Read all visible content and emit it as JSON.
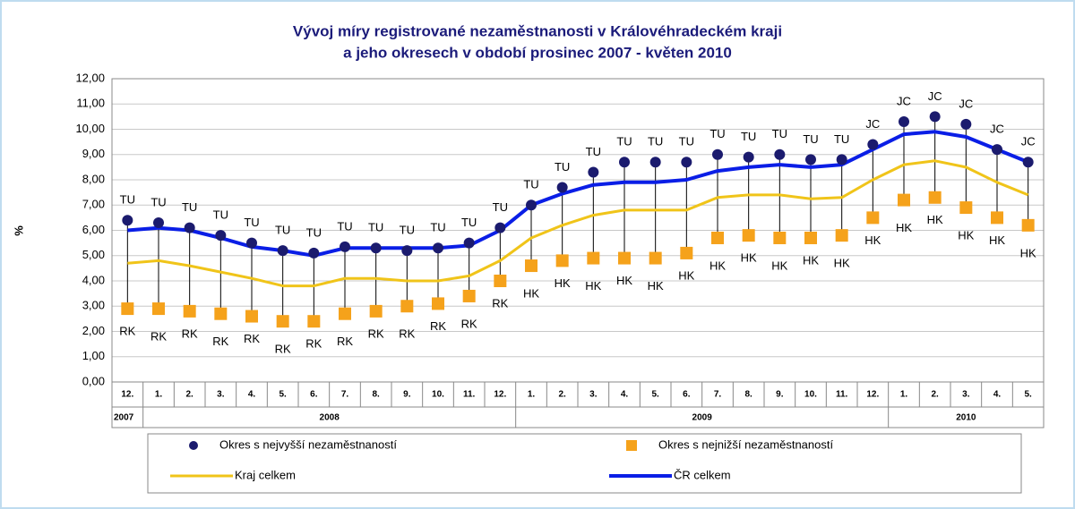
{
  "chart_data": {
    "type": "line",
    "title": [
      "Vývoj míry registrované nezaměstnanosti v Královéhradeckém kraji",
      "a jeho okresech v období prosinec 2007  -  květen 2010"
    ],
    "y_label": "%",
    "categories": [
      "12.",
      "1.",
      "2.",
      "3.",
      "4.",
      "5.",
      "6.",
      "7.",
      "8.",
      "9.",
      "10.",
      "11.",
      "12.",
      "1.",
      "2.",
      "3.",
      "4.",
      "5.",
      "6.",
      "7.",
      "8.",
      "9.",
      "10.",
      "11.",
      "12.",
      "1.",
      "2.",
      "3.",
      "4.",
      "5."
    ],
    "years": [
      "2007",
      "2008",
      "2009",
      "2010"
    ],
    "ylim": [
      0,
      12
    ],
    "yticks": [
      {
        "value": 0,
        "label": "0,00"
      },
      {
        "value": 1,
        "label": "1,00"
      },
      {
        "value": 2,
        "label": "2,00"
      },
      {
        "value": 3,
        "label": "3,00"
      },
      {
        "value": 4,
        "label": "4,00"
      },
      {
        "value": 5,
        "label": "5,00"
      },
      {
        "value": 6,
        "label": "6,00"
      },
      {
        "value": 7,
        "label": "7,00"
      },
      {
        "value": 8,
        "label": "8,00"
      },
      {
        "value": 9,
        "label": "9,00"
      },
      {
        "value": 10,
        "label": "10,00"
      },
      {
        "value": 11,
        "label": "11,00"
      },
      {
        "value": 12,
        "label": "12,00"
      }
    ],
    "grid": true,
    "series": [
      {
        "name": "Okres s nejvyšší nezaměstnaností",
        "marker": "circle",
        "color": "#1b1b6e",
        "values": [
          6.4,
          6.3,
          6.1,
          5.8,
          5.5,
          5.2,
          5.1,
          5.35,
          5.3,
          5.2,
          5.3,
          5.5,
          6.1,
          7.0,
          7.7,
          8.3,
          8.7,
          8.7,
          8.7,
          9.0,
          8.9,
          9.0,
          8.8,
          8.8,
          9.4,
          10.3,
          10.5,
          10.2,
          9.2,
          8.7
        ],
        "point_labels": [
          "TU",
          "TU",
          "TU",
          "TU",
          "TU",
          "TU",
          "TU",
          "TU",
          "TU",
          "TU",
          "TU",
          "TU",
          "TU",
          "TU",
          "TU",
          "TU",
          "TU",
          "TU",
          "TU",
          "TU",
          "TU",
          "TU",
          "TU",
          "TU",
          "JC",
          "JC",
          "JC",
          "JC",
          "JC",
          "JC"
        ]
      },
      {
        "name": "Okres s nejnižší nezaměstnaností",
        "marker": "square",
        "color": "#f5a21b",
        "values": [
          2.9,
          2.9,
          2.8,
          2.7,
          2.6,
          2.4,
          2.4,
          2.7,
          2.8,
          3.0,
          3.1,
          3.4,
          4.0,
          4.6,
          4.8,
          4.9,
          4.9,
          4.9,
          5.1,
          5.7,
          5.8,
          5.7,
          5.7,
          5.8,
          6.5,
          7.2,
          7.3,
          6.9,
          6.5,
          6.2
        ],
        "point_labels": [
          "RK",
          "RK",
          "RK",
          "RK",
          "RK",
          "RK",
          "RK",
          "RK",
          "RK",
          "RK",
          "RK",
          "RK",
          "RK",
          "HK",
          "HK",
          "HK",
          "HK",
          "HK",
          "HK",
          "HK",
          "HK",
          "HK",
          "HK",
          "HK",
          "HK",
          "HK",
          "HK",
          "HK",
          "HK",
          "HK"
        ]
      },
      {
        "name": "Kraj celkem",
        "marker": "line",
        "color": "#f0c419",
        "values": [
          4.7,
          4.8,
          4.6,
          4.35,
          4.1,
          3.8,
          3.8,
          4.1,
          4.1,
          4.0,
          4.0,
          4.2,
          4.8,
          5.7,
          6.2,
          6.6,
          6.8,
          6.8,
          6.8,
          7.3,
          7.4,
          7.4,
          7.25,
          7.3,
          8.0,
          8.6,
          8.75,
          8.5,
          7.9,
          7.4
        ]
      },
      {
        "name": "ČR celkem",
        "marker": "line",
        "color": "#0a1ee6",
        "values": [
          6.0,
          6.1,
          6.0,
          5.7,
          5.35,
          5.2,
          5.0,
          5.3,
          5.3,
          5.3,
          5.3,
          5.4,
          6.0,
          7.0,
          7.45,
          7.8,
          7.9,
          7.9,
          8.0,
          8.35,
          8.5,
          8.6,
          8.5,
          8.6,
          9.2,
          9.8,
          9.9,
          9.7,
          9.2,
          8.7
        ]
      }
    ]
  }
}
